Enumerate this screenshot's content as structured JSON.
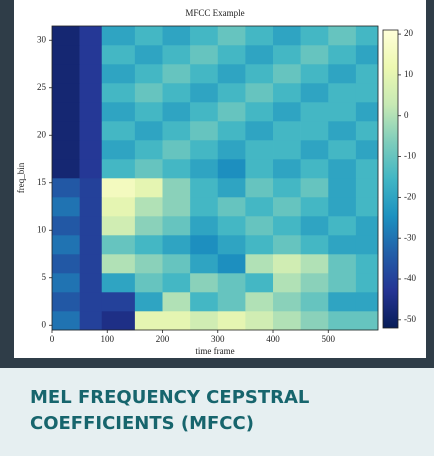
{
  "chart_data": {
    "type": "heatmap",
    "title": "MFCC Example",
    "x_label": "time frame",
    "y_label": "freq_bin",
    "x_edges": [
      0,
      50,
      90,
      150,
      200,
      250,
      300,
      350,
      400,
      450,
      500,
      550,
      590
    ],
    "y_edges": [
      -0.5,
      1.5,
      3.5,
      5.5,
      7.5,
      9.5,
      11.5,
      13.5,
      15.5,
      17.5,
      19.5,
      21.5,
      23.5,
      25.5,
      27.5,
      29.5,
      31.5
    ],
    "z": [
      [
        -30,
        -40,
        -45,
        10,
        10,
        5,
        10,
        5,
        0,
        -5,
        -10,
        -10
      ],
      [
        -35,
        -40,
        -40,
        -20,
        0,
        -15,
        -10,
        0,
        -5,
        -10,
        -20,
        -20
      ],
      [
        -30,
        -40,
        -20,
        -10,
        -15,
        -5,
        -10,
        -15,
        0,
        -5,
        -10,
        -15
      ],
      [
        -35,
        -40,
        0,
        -5,
        -10,
        -20,
        -25,
        0,
        5,
        0,
        -10,
        -15
      ],
      [
        -30,
        -40,
        -10,
        -15,
        -20,
        -25,
        -20,
        -15,
        -10,
        -15,
        -20,
        -20
      ],
      [
        -35,
        -40,
        5,
        -5,
        -10,
        -20,
        -15,
        -10,
        -15,
        -20,
        -15,
        -20
      ],
      [
        -30,
        -40,
        10,
        0,
        -5,
        -15,
        -10,
        -15,
        -10,
        -15,
        -20,
        -15
      ],
      [
        -35,
        -40,
        15,
        10,
        -5,
        -15,
        -20,
        -10,
        -15,
        -10,
        -20,
        -15
      ],
      [
        -48,
        -42,
        -15,
        -10,
        -15,
        -20,
        -25,
        -15,
        -20,
        -15,
        -20,
        -15
      ],
      [
        -48,
        -42,
        -20,
        -15,
        -10,
        -15,
        -20,
        -15,
        -15,
        -20,
        -15,
        -20
      ],
      [
        -48,
        -42,
        -15,
        -20,
        -15,
        -10,
        -15,
        -20,
        -15,
        -15,
        -20,
        -15
      ],
      [
        -48,
        -42,
        -20,
        -15,
        -20,
        -15,
        -10,
        -15,
        -20,
        -15,
        -15,
        -20
      ],
      [
        -48,
        -42,
        -15,
        -10,
        -15,
        -20,
        -15,
        -10,
        -15,
        -20,
        -15,
        -15
      ],
      [
        -48,
        -42,
        -20,
        -15,
        -10,
        -15,
        -20,
        -15,
        -10,
        -15,
        -20,
        -15
      ],
      [
        -48,
        -42,
        -15,
        -20,
        -15,
        -10,
        -15,
        -20,
        -15,
        -10,
        -15,
        -20
      ],
      [
        -48,
        -42,
        -20,
        -15,
        -20,
        -15,
        -10,
        -15,
        -20,
        -15,
        -10,
        -15
      ]
    ],
    "xlim": [
      0,
      590
    ],
    "xticks": [
      0,
      100,
      200,
      300,
      400,
      500
    ],
    "ylim": [
      -0.5,
      31.5
    ],
    "yticks": [
      0,
      5,
      10,
      15,
      20,
      25,
      30
    ],
    "zlim": [
      -52,
      21
    ],
    "zticks": [
      20,
      10,
      0,
      -10,
      -20,
      -30,
      -40,
      -50
    ],
    "colormap": [
      "#081d58",
      "#253494",
      "#225ea8",
      "#1d91c0",
      "#41b6c4",
      "#7fcdbb",
      "#c7e9b4",
      "#edf8b1",
      "#ffffd9"
    ]
  },
  "caption_lines": [
    "MEL FREQUENCY CEPSTRAL",
    "COEFFICIENTS (MFCC)"
  ]
}
